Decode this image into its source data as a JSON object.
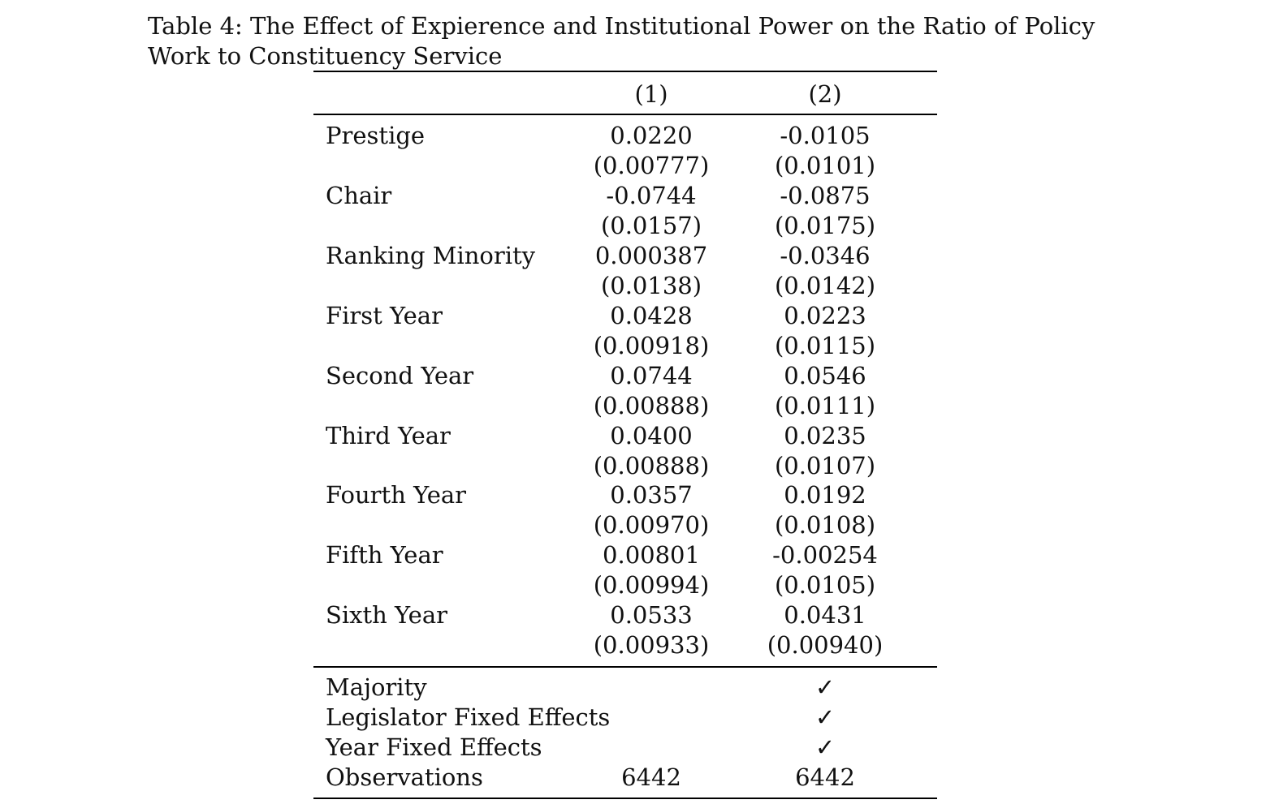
{
  "caption": "Table 4: The Effect of Expierence and Institutional Power on the Ratio of Policy Work to Constituency Service",
  "columns": [
    "(1)",
    "(2)"
  ],
  "rows": [
    {
      "label": "Prestige",
      "coef": [
        "0.0220",
        "-0.0105"
      ],
      "se": [
        "(0.00777)",
        "(0.0101)"
      ]
    },
    {
      "label": "Chair",
      "coef": [
        "-0.0744",
        "-0.0875"
      ],
      "se": [
        "(0.0157)",
        "(0.0175)"
      ]
    },
    {
      "label": "Ranking Minority",
      "coef": [
        "0.000387",
        "-0.0346"
      ],
      "se": [
        "(0.0138)",
        "(0.0142)"
      ]
    },
    {
      "label": "First Year",
      "coef": [
        "0.0428",
        "0.0223"
      ],
      "se": [
        "(0.00918)",
        "(0.0115)"
      ]
    },
    {
      "label": "Second Year",
      "coef": [
        "0.0744",
        "0.0546"
      ],
      "se": [
        "(0.00888)",
        "(0.0111)"
      ]
    },
    {
      "label": "Third Year",
      "coef": [
        "0.0400",
        "0.0235"
      ],
      "se": [
        "(0.00888)",
        "(0.0107)"
      ]
    },
    {
      "label": "Fourth Year",
      "coef": [
        "0.0357",
        "0.0192"
      ],
      "se": [
        "(0.00970)",
        "(0.0108)"
      ]
    },
    {
      "label": "Fifth Year",
      "coef": [
        "0.00801",
        "-0.00254"
      ],
      "se": [
        "(0.00994)",
        "(0.0105)"
      ]
    },
    {
      "label": "Sixth Year",
      "coef": [
        "0.0533",
        "0.0431"
      ],
      "se": [
        "(0.00933)",
        "(0.00940)"
      ]
    }
  ],
  "footer": [
    {
      "label": "Majority",
      "values": [
        "",
        "✓"
      ]
    },
    {
      "label": "Legislator Fixed Effects",
      "values": [
        "",
        "✓"
      ]
    },
    {
      "label": "Year Fixed Effects",
      "values": [
        "",
        "✓"
      ]
    },
    {
      "label": "Observations",
      "values": [
        "6442",
        "6442"
      ]
    }
  ]
}
